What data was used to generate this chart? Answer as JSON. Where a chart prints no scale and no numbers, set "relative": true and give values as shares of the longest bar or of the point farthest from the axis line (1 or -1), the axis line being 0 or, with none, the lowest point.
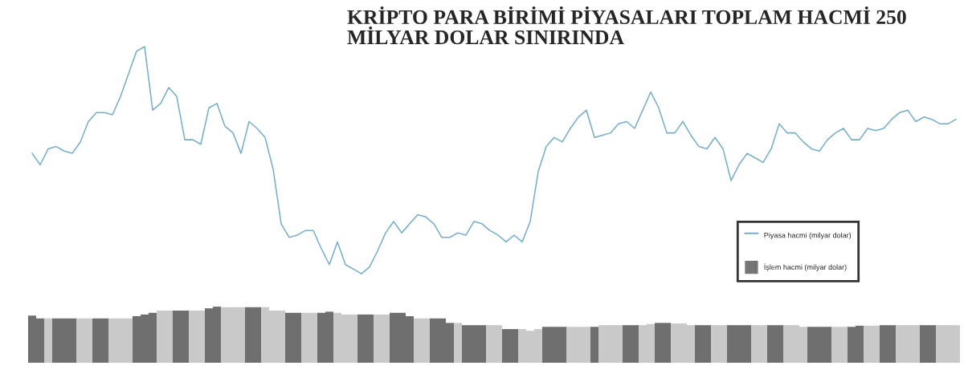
{
  "chart_data": [
    {
      "type": "line",
      "title": "KRİPTO PARA BİRİMİ PİYASALARI TOPLAM HACMİ 250 MİLYAR DOLAR SINIRINDA",
      "relative": true,
      "legend": "bottom right",
      "categories": [
        null,
        null,
        null,
        null,
        null,
        null,
        null,
        null,
        null,
        null,
        null,
        null,
        null,
        null,
        null,
        null,
        null,
        null,
        null,
        null,
        null,
        null,
        null,
        null,
        null,
        null,
        null,
        null,
        null,
        null,
        null,
        null,
        null,
        null,
        null,
        null,
        null,
        null,
        null,
        null,
        null,
        null,
        null,
        null,
        null,
        null,
        null,
        null,
        null,
        null,
        null,
        null,
        null,
        null,
        null,
        null,
        null,
        null,
        null,
        null,
        null,
        null,
        null,
        null,
        null,
        null,
        null,
        null,
        null,
        null,
        null,
        null,
        null,
        null,
        null,
        null,
        null,
        null,
        null,
        null,
        null,
        null,
        null,
        null,
        null,
        null,
        null,
        null,
        null,
        null,
        null,
        null,
        null,
        null,
        null,
        null,
        null,
        null,
        null,
        null,
        null,
        null,
        null,
        null,
        null,
        null,
        null,
        null,
        null,
        null,
        null,
        null,
        null,
        null,
        null,
        null
      ],
      "series": [
        {
          "name": "Piyasa hacmi (milyar dolar)",
          "color": "#74aecb",
          "values": [
            0.53,
            0.48,
            0.55,
            0.56,
            0.54,
            0.53,
            0.58,
            0.67,
            0.71,
            0.71,
            0.7,
            0.78,
            0.88,
            0.98,
            1.0,
            0.72,
            0.75,
            0.82,
            0.78,
            0.59,
            0.59,
            0.57,
            0.73,
            0.75,
            0.65,
            0.62,
            0.53,
            0.67,
            0.64,
            0.6,
            0.46,
            0.22,
            0.16,
            0.17,
            0.19,
            0.19,
            0.11,
            0.04,
            0.14,
            0.04,
            0.02,
            0.0,
            0.03,
            0.1,
            0.18,
            0.23,
            0.18,
            0.22,
            0.26,
            0.25,
            0.22,
            0.16,
            0.16,
            0.18,
            0.17,
            0.23,
            0.22,
            0.19,
            0.17,
            0.14,
            0.17,
            0.14,
            0.23,
            0.45,
            0.56,
            0.6,
            0.58,
            0.64,
            0.69,
            0.72,
            0.6,
            0.61,
            0.62,
            0.66,
            0.67,
            0.64,
            0.72,
            0.8,
            0.73,
            0.62,
            0.62,
            0.67,
            0.61,
            0.56,
            0.55,
            0.6,
            0.55,
            0.41,
            0.48,
            0.53,
            0.51,
            0.49,
            0.55,
            0.66,
            0.62,
            0.62,
            0.58,
            0.55,
            0.54,
            0.59,
            0.62,
            0.64,
            0.59,
            0.59,
            0.64,
            0.63,
            0.64,
            0.68,
            0.71,
            0.72,
            0.67,
            0.69,
            0.68,
            0.66,
            0.66,
            0.68
          ]
        }
      ]
    },
    {
      "type": "bar",
      "relative": true,
      "legend": "top right",
      "categories": [
        null,
        null,
        null,
        null,
        null,
        null,
        null,
        null,
        null,
        null,
        null,
        null,
        null,
        null,
        null,
        null,
        null,
        null,
        null,
        null,
        null,
        null,
        null,
        null,
        null,
        null,
        null,
        null,
        null,
        null,
        null,
        null,
        null,
        null,
        null,
        null,
        null,
        null,
        null,
        null,
        null,
        null,
        null,
        null,
        null,
        null,
        null,
        null,
        null,
        null,
        null,
        null,
        null,
        null,
        null,
        null,
        null,
        null,
        null,
        null,
        null,
        null,
        null,
        null,
        null,
        null,
        null,
        null,
        null,
        null,
        null,
        null,
        null,
        null,
        null,
        null,
        null,
        null,
        null,
        null,
        null,
        null,
        null,
        null,
        null,
        null,
        null,
        null,
        null,
        null,
        null,
        null,
        null,
        null,
        null,
        null,
        null,
        null,
        null,
        null,
        null,
        null,
        null,
        null,
        null,
        null,
        null,
        null,
        null,
        null,
        null,
        null,
        null,
        null,
        null,
        null
      ],
      "series": [
        {
          "name": "İşlem hacmi (milyar dolar)",
          "values": [
            0.84,
            0.79,
            0.79,
            0.79,
            0.79,
            0.79,
            0.79,
            0.79,
            0.79,
            0.79,
            0.79,
            0.79,
            0.79,
            0.83,
            0.86,
            0.89,
            0.93,
            0.93,
            0.93,
            0.93,
            0.93,
            0.93,
            0.97,
            1.0,
            0.99,
            0.99,
            0.99,
            0.99,
            0.99,
            0.99,
            0.93,
            0.93,
            0.89,
            0.89,
            0.89,
            0.89,
            0.89,
            0.91,
            0.89,
            0.86,
            0.86,
            0.86,
            0.86,
            0.86,
            0.86,
            0.89,
            0.89,
            0.83,
            0.79,
            0.79,
            0.79,
            0.79,
            0.71,
            0.71,
            0.67,
            0.67,
            0.67,
            0.67,
            0.67,
            0.6,
            0.6,
            0.6,
            0.57,
            0.6,
            0.64,
            0.64,
            0.64,
            0.64,
            0.64,
            0.64,
            0.64,
            0.67,
            0.67,
            0.67,
            0.67,
            0.67,
            0.67,
            0.69,
            0.71,
            0.71,
            0.7,
            0.7,
            0.67,
            0.67,
            0.67,
            0.67,
            0.67,
            0.67,
            0.67,
            0.67,
            0.67,
            0.67,
            0.67,
            0.67,
            0.67,
            0.67,
            0.64,
            0.64,
            0.64,
            0.64,
            0.64,
            0.64,
            0.64,
            0.66,
            0.66,
            0.66,
            0.67,
            0.67,
            0.67,
            0.67,
            0.67,
            0.67,
            0.67,
            0.67,
            0.67,
            0.67
          ],
          "colors": [
            "#6f6f6f",
            "#6f6f6f",
            "#c9c9c9",
            "#6f6f6f",
            "#6f6f6f",
            "#6f6f6f",
            "#c9c9c9",
            "#c9c9c9",
            "#6f6f6f",
            "#6f6f6f",
            "#c9c9c9",
            "#c9c9c9",
            "#c9c9c9",
            "#6f6f6f",
            "#6f6f6f",
            "#6f6f6f",
            "#c9c9c9",
            "#c9c9c9",
            "#6f6f6f",
            "#6f6f6f",
            "#c9c9c9",
            "#c9c9c9",
            "#6f6f6f",
            "#6f6f6f",
            "#c9c9c9",
            "#c9c9c9",
            "#c9c9c9",
            "#6f6f6f",
            "#6f6f6f",
            "#c9c9c9",
            "#c9c9c9",
            "#c9c9c9",
            "#6f6f6f",
            "#6f6f6f",
            "#c9c9c9",
            "#c9c9c9",
            "#6f6f6f",
            "#6f6f6f",
            "#c9c9c9",
            "#c9c9c9",
            "#c9c9c9",
            "#6f6f6f",
            "#6f6f6f",
            "#c9c9c9",
            "#c9c9c9",
            "#6f6f6f",
            "#6f6f6f",
            "#6f6f6f",
            "#c9c9c9",
            "#c9c9c9",
            "#6f6f6f",
            "#6f6f6f",
            "#6f6f6f",
            "#c9c9c9",
            "#6f6f6f",
            "#6f6f6f",
            "#6f6f6f",
            "#c9c9c9",
            "#c9c9c9",
            "#6f6f6f",
            "#6f6f6f",
            "#c9c9c9",
            "#c9c9c9",
            "#c9c9c9",
            "#6f6f6f",
            "#6f6f6f",
            "#6f6f6f",
            "#c9c9c9",
            "#c9c9c9",
            "#c9c9c9",
            "#6f6f6f",
            "#c9c9c9",
            "#c9c9c9",
            "#c9c9c9",
            "#6f6f6f",
            "#6f6f6f",
            "#c9c9c9",
            "#c9c9c9",
            "#6f6f6f",
            "#6f6f6f",
            "#c9c9c9",
            "#c9c9c9",
            "#c9c9c9",
            "#6f6f6f",
            "#6f6f6f",
            "#c9c9c9",
            "#c9c9c9",
            "#6f6f6f",
            "#6f6f6f",
            "#6f6f6f",
            "#c9c9c9",
            "#c9c9c9",
            "#6f6f6f",
            "#6f6f6f",
            "#c9c9c9",
            "#c9c9c9",
            "#c9c9c9",
            "#6f6f6f",
            "#6f6f6f",
            "#6f6f6f",
            "#c9c9c9",
            "#c9c9c9",
            "#6f6f6f",
            "#6f6f6f",
            "#c9c9c9",
            "#c9c9c9",
            "#6f6f6f",
            "#6f6f6f",
            "#c9c9c9",
            "#c9c9c9",
            "#c9c9c9",
            "#6f6f6f",
            "#6f6f6f",
            "#c9c9c9",
            "#c9c9c9",
            "#c9c9c9"
          ]
        }
      ]
    }
  ]
}
